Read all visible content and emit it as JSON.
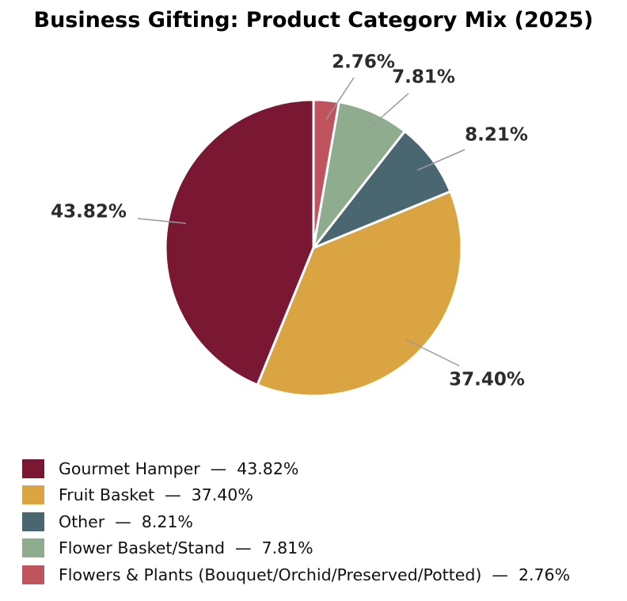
{
  "chart_data": {
    "type": "pie",
    "title": "Business Gifting: Product Category Mix (2025)",
    "slices": [
      {
        "label": "Gourmet Hamper",
        "value": 43.82,
        "display": "43.82%",
        "color": "#7a1834"
      },
      {
        "label": "Fruit Basket",
        "value": 37.4,
        "display": "37.40%",
        "color": "#d9a441"
      },
      {
        "label": "Other",
        "value": 8.21,
        "display": "8.21%",
        "color": "#4a6670"
      },
      {
        "label": "Flower Basket/Stand",
        "value": 7.81,
        "display": "7.81%",
        "color": "#8fac8f"
      },
      {
        "label": "Flowers & Plants (Bouquet/Orchid/Preserved/Potted)",
        "value": 2.76,
        "display": "2.76%",
        "color": "#c0545e"
      }
    ],
    "start_angle": "12 o'clock",
    "direction": "clockwise",
    "legend_position": "bottom-left",
    "legend_separator": "—"
  }
}
